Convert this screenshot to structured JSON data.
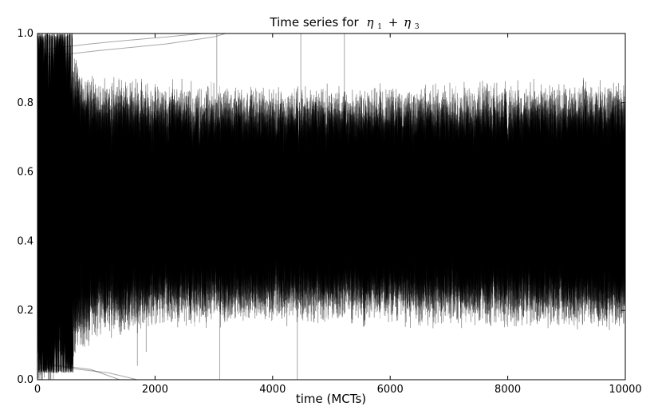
{
  "chart_data": {
    "type": "line",
    "title": {
      "prefix": "Time series for",
      "symbol": "η",
      "term1_sub": "1",
      "operator": "+",
      "term2_sub": "3"
    },
    "xlabel": "time (MCTs)",
    "ylabel": "",
    "xlim": [
      0,
      10000
    ],
    "ylim": [
      0.0,
      1.0
    ],
    "xticks": [
      0,
      2000,
      4000,
      6000,
      8000,
      10000
    ],
    "yticks": [
      "0.0",
      "0.2",
      "0.4",
      "0.6",
      "0.8",
      "1.0"
    ],
    "grid": false,
    "legend": "none",
    "line_color": "#000000",
    "series_count": 50,
    "dense_band": {
      "x": [
        0,
        200,
        600,
        1000,
        2000,
        4000,
        6000,
        8000,
        10000
      ],
      "upper_envelope": [
        1.0,
        0.98,
        0.88,
        0.82,
        0.8,
        0.79,
        0.79,
        0.8,
        0.81
      ],
      "lower_envelope": [
        0.0,
        0.02,
        0.12,
        0.18,
        0.21,
        0.22,
        0.22,
        0.21,
        0.2
      ],
      "center": 0.5
    },
    "stray_series": [
      {
        "x": [
          0,
          400,
          900,
          1500,
          2200,
          2800,
          3100
        ],
        "y": [
          0.95,
          0.96,
          0.97,
          0.98,
          0.99,
          1.0,
          1.0
        ]
      },
      {
        "x": [
          0,
          500,
          1000,
          1600,
          2200,
          3000,
          3200
        ],
        "y": [
          0.93,
          0.94,
          0.95,
          0.96,
          0.97,
          0.99,
          1.0
        ]
      },
      {
        "x": [
          0,
          300,
          700,
          1200,
          1700
        ],
        "y": [
          0.03,
          0.04,
          0.03,
          0.02,
          0.0
        ]
      },
      {
        "x": [
          0,
          400,
          900,
          1400
        ],
        "y": [
          0.05,
          0.04,
          0.03,
          0.0
        ]
      }
    ],
    "spikes": [
      {
        "x": 3050,
        "y_top": 1.0,
        "y_bottom": 0.28
      },
      {
        "x": 3100,
        "y_top": 0.7,
        "y_bottom": 0.0
      },
      {
        "x": 4420,
        "y_top": 0.75,
        "y_bottom": 0.0
      },
      {
        "x": 4480,
        "y_top": 1.0,
        "y_bottom": 0.4
      },
      {
        "x": 5220,
        "y_top": 1.0,
        "y_bottom": 0.35
      },
      {
        "x": 1700,
        "y_top": 0.6,
        "y_bottom": 0.04
      },
      {
        "x": 1850,
        "y_top": 0.7,
        "y_bottom": 0.08
      }
    ]
  }
}
